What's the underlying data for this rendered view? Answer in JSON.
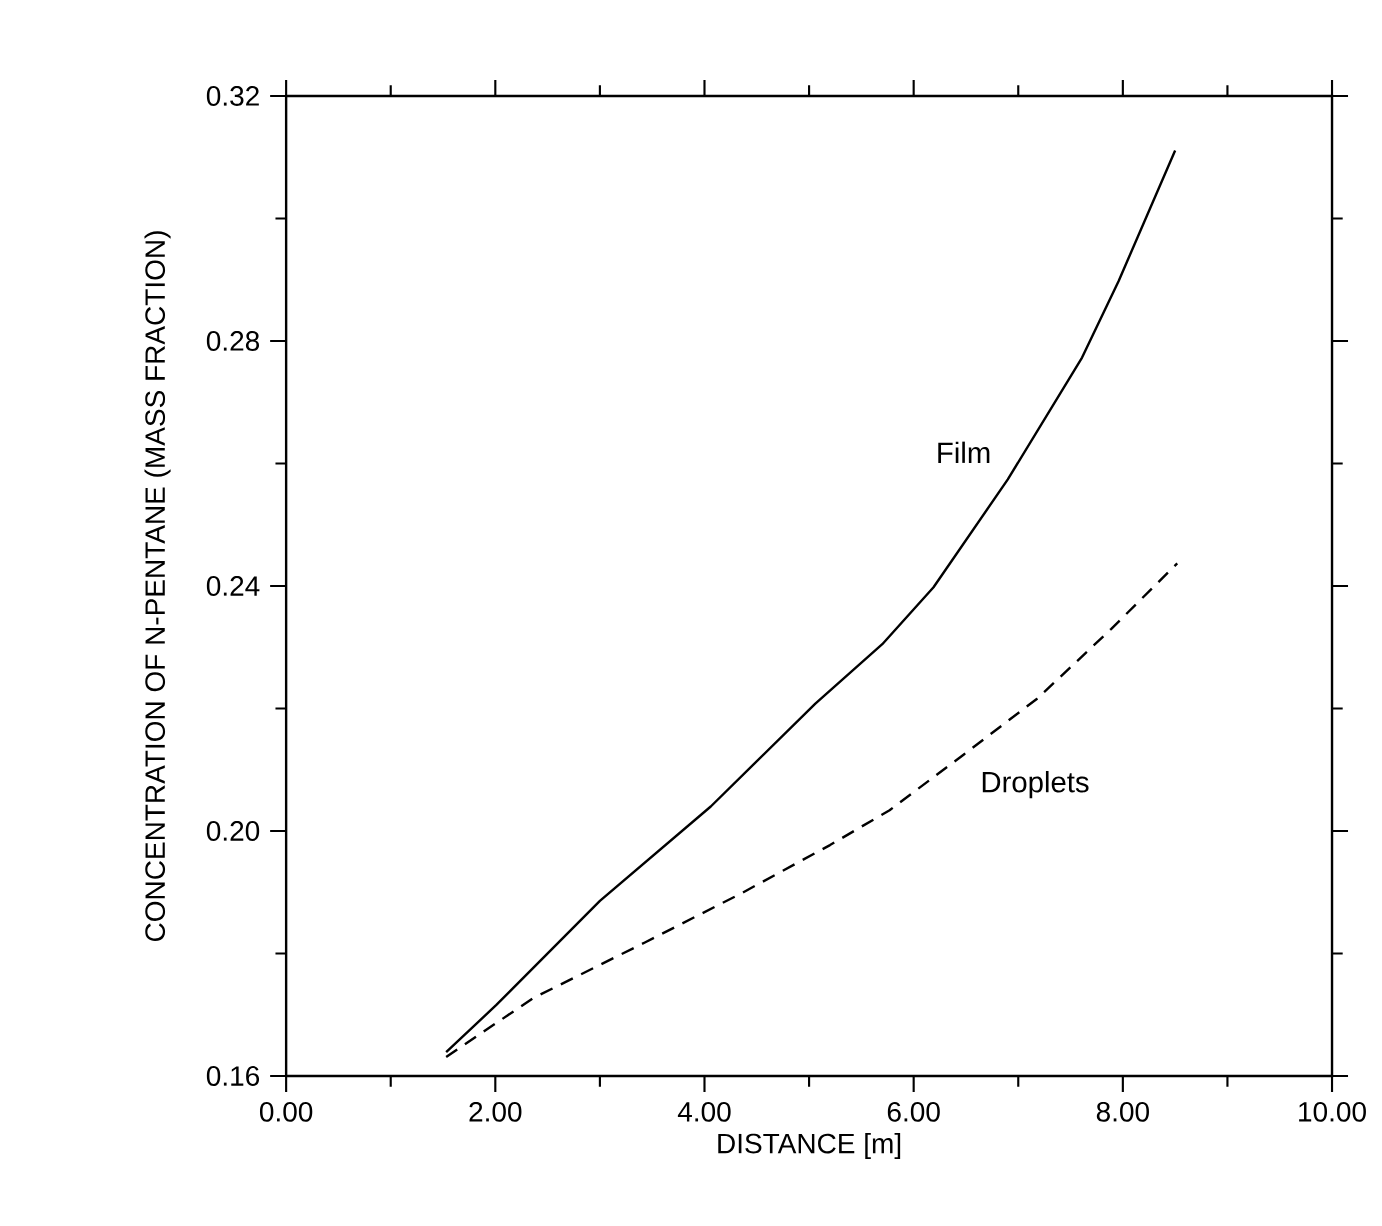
{
  "chart_data": {
    "type": "line",
    "xlabel": "DISTANCE [m]",
    "ylabel": "CONCENTRATION OF N-PENTANE  (MASS FRACTION)",
    "xlim": [
      0,
      10
    ],
    "ylim": [
      0.16,
      0.32
    ],
    "xticks": [
      {
        "value": 0,
        "label": "0.00"
      },
      {
        "value": 2,
        "label": "2.00"
      },
      {
        "value": 4,
        "label": "4.00"
      },
      {
        "value": 6,
        "label": "6.00"
      },
      {
        "value": 8,
        "label": "8.00"
      },
      {
        "value": 10,
        "label": "10.00"
      }
    ],
    "yticks": [
      {
        "value": 0.16,
        "label": "0.16"
      },
      {
        "value": 0.2,
        "label": "0.20"
      },
      {
        "value": 0.24,
        "label": "0.24"
      },
      {
        "value": 0.28,
        "label": "0.28"
      },
      {
        "value": 0.32,
        "label": "0.32"
      }
    ],
    "grid": false,
    "marker": "none",
    "series": [
      {
        "name": "Film",
        "color": "#000000",
        "line_style": "solid",
        "x": [
          1.53,
          2.01,
          3.0,
          4.06,
          5.06,
          5.7,
          6.19,
          6.9,
          7.61,
          7.96,
          8.5
        ],
        "values": [
          0.1639,
          0.1716,
          0.1886,
          0.204,
          0.2208,
          0.2305,
          0.2398,
          0.2574,
          0.2773,
          0.2898,
          0.3111
        ]
      },
      {
        "name": "Droplets",
        "color": "#000000",
        "line_style": "dashed",
        "x": [
          1.53,
          2.36,
          3.43,
          4.35,
          5.2,
          5.77,
          6.48,
          7.18,
          7.89,
          8.52
        ],
        "values": [
          0.1631,
          0.1727,
          0.1818,
          0.1898,
          0.1977,
          0.2034,
          0.2125,
          0.2216,
          0.233,
          0.2437
        ]
      }
    ]
  }
}
